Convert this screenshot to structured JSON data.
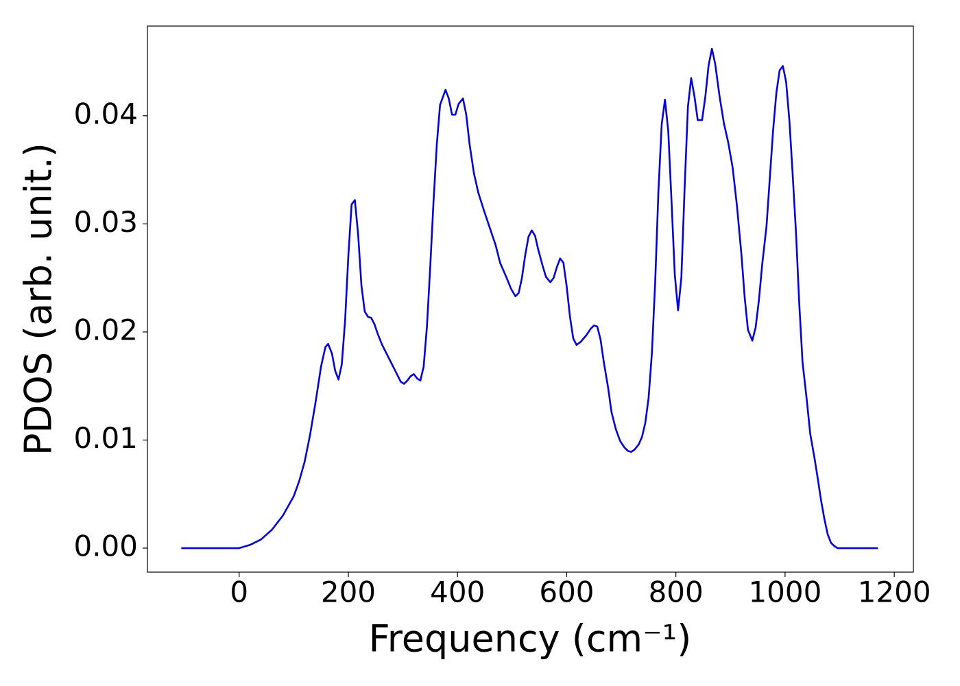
{
  "chart_data": {
    "type": "line",
    "xlabel": "Frequency (cm⁻¹)",
    "ylabel": "PDOS (arb. unit.)",
    "xlim": [
      -168,
      1235
    ],
    "ylim": [
      -0.00222,
      0.0483
    ],
    "xticks": [
      0,
      200,
      400,
      600,
      800,
      1000,
      1200
    ],
    "yticks": [
      {
        "value": 0,
        "label": "0.00"
      },
      {
        "value": 0.01,
        "label": "0.01"
      },
      {
        "value": 0.02,
        "label": "0.02"
      },
      {
        "value": 0.03,
        "label": "0.03"
      },
      {
        "value": 0.04,
        "label": "0.04"
      }
    ],
    "grid": false,
    "x": [
      -106,
      0,
      20,
      40,
      60,
      80,
      100,
      110,
      120,
      130,
      140,
      150,
      158,
      163,
      170,
      176,
      182,
      188,
      194,
      200,
      206,
      212,
      218,
      224,
      230,
      236,
      242,
      248,
      254,
      262,
      272,
      282,
      290,
      296,
      302,
      308,
      314,
      320,
      326,
      332,
      338,
      344,
      350,
      356,
      362,
      368,
      378,
      384,
      390,
      396,
      402,
      410,
      416,
      422,
      430,
      438,
      448,
      460,
      470,
      478,
      490,
      498,
      506,
      512,
      518,
      524,
      530,
      536,
      542,
      548,
      556,
      562,
      570,
      576,
      582,
      588,
      594,
      600,
      606,
      612,
      618,
      626,
      636,
      644,
      650,
      656,
      662,
      668,
      676,
      682,
      690,
      698,
      706,
      712,
      718,
      724,
      732,
      738,
      744,
      750,
      756,
      762,
      768,
      774,
      780,
      786,
      792,
      798,
      804,
      810,
      816,
      822,
      828,
      834,
      840,
      848,
      854,
      860,
      866,
      872,
      880,
      888,
      896,
      904,
      912,
      920,
      926,
      932,
      940,
      946,
      952,
      958,
      966,
      972,
      978,
      984,
      990,
      996,
      1002,
      1008,
      1014,
      1020,
      1026,
      1032,
      1040,
      1046,
      1054,
      1060,
      1066,
      1072,
      1078,
      1084,
      1090,
      1096,
      1170
    ],
    "series": [
      {
        "color": "#0000ee",
        "values": [
          0,
          0,
          0.0003,
          0.0008,
          0.0017,
          0.003,
          0.0048,
          0.0062,
          0.008,
          0.0105,
          0.0135,
          0.0168,
          0.0186,
          0.0189,
          0.018,
          0.0164,
          0.0156,
          0.017,
          0.021,
          0.027,
          0.0318,
          0.0322,
          0.029,
          0.0243,
          0.0219,
          0.0214,
          0.0213,
          0.0207,
          0.0198,
          0.0188,
          0.0178,
          0.0168,
          0.016,
          0.0154,
          0.0152,
          0.0155,
          0.0159,
          0.0161,
          0.0157,
          0.0155,
          0.0168,
          0.0205,
          0.026,
          0.032,
          0.0373,
          0.041,
          0.0424,
          0.0416,
          0.0401,
          0.0401,
          0.0411,
          0.0416,
          0.0401,
          0.0374,
          0.0347,
          0.0329,
          0.0313,
          0.0295,
          0.028,
          0.0264,
          0.025,
          0.024,
          0.0233,
          0.0236,
          0.025,
          0.0271,
          0.0288,
          0.0294,
          0.0289,
          0.0276,
          0.0261,
          0.0251,
          0.0246,
          0.025,
          0.026,
          0.0268,
          0.0264,
          0.0242,
          0.0214,
          0.0194,
          0.0188,
          0.0191,
          0.0197,
          0.0203,
          0.0206,
          0.0205,
          0.0193,
          0.0172,
          0.0148,
          0.0126,
          0.011,
          0.0099,
          0.0093,
          0.009,
          0.0089,
          0.0091,
          0.0096,
          0.0103,
          0.0116,
          0.0139,
          0.018,
          0.0245,
          0.033,
          0.0392,
          0.0415,
          0.0386,
          0.0321,
          0.0253,
          0.022,
          0.025,
          0.0333,
          0.0408,
          0.0435,
          0.0418,
          0.0396,
          0.0396,
          0.0418,
          0.0447,
          0.0462,
          0.0448,
          0.0418,
          0.0393,
          0.0375,
          0.0352,
          0.0316,
          0.0272,
          0.0232,
          0.0202,
          0.0192,
          0.0204,
          0.0229,
          0.0262,
          0.0298,
          0.0342,
          0.0386,
          0.0421,
          0.0442,
          0.0446,
          0.0431,
          0.0395,
          0.0345,
          0.0292,
          0.0226,
          0.0172,
          0.0136,
          0.0106,
          0.0083,
          0.0064,
          0.0044,
          0.0027,
          0.0013,
          0.0005,
          0.0002,
          0,
          0
        ]
      }
    ]
  }
}
